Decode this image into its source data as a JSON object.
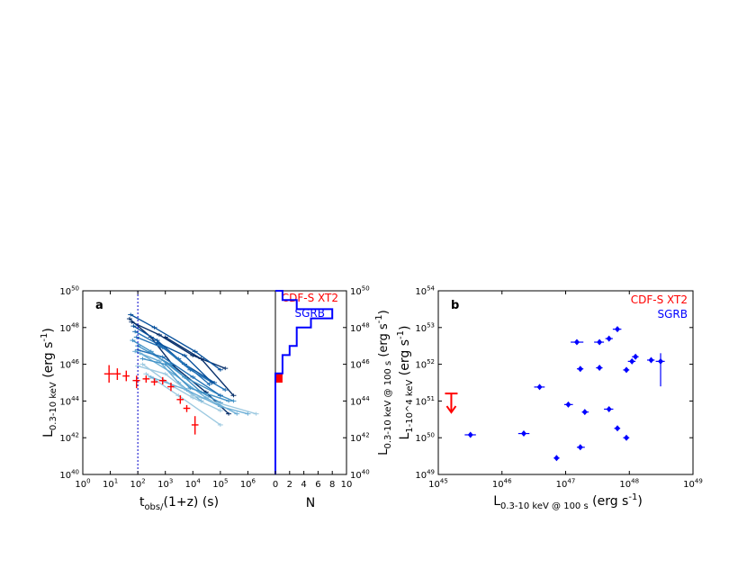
{
  "chart_data": [
    {
      "type": "line",
      "panel_label": "a",
      "xlabel": "t_obs/(1+z) (s)",
      "ylabel": "L_0.3-10 keV (erg s^-1)",
      "xscale": "log",
      "yscale": "log",
      "xlim": [
        1,
        10000000.0
      ],
      "ylim": [
        1e+40,
        1e+50
      ],
      "x_ticks": [
        "10^0",
        "10^1",
        "10^2",
        "10^3",
        "10^4",
        "10^5",
        "10^6"
      ],
      "y_ticks": [
        "10^40",
        "10^42",
        "10^44",
        "10^46",
        "10^48",
        "10^50"
      ],
      "vline_x": 100,
      "legend": [
        {
          "name": "CDF-S XT2",
          "color": "#ff0000"
        },
        {
          "name": "SGRB",
          "color": "#0000ff"
        }
      ],
      "sgrb_colors": [
        "#08306b",
        "#08519c",
        "#2171b5",
        "#4292c6",
        "#6baed6",
        "#9ecae1"
      ],
      "series": [
        {
          "name": "CDF-S XT2",
          "color": "#ff0000",
          "points": [
            {
              "x": 9,
              "y": 3e+45,
              "xerr": [
                6,
                14
              ],
              "yerr": [
                1e+45,
                9e+45
              ]
            },
            {
              "x": 18,
              "y": 3e+45,
              "xerr": [
                14,
                24
              ],
              "yerr": [
                1.4e+45,
                6e+45
              ]
            },
            {
              "x": 38,
              "y": 2.3e+45,
              "xerr": [
                28,
                50
              ],
              "yerr": [
                1.2e+45,
                4.5e+45
              ]
            },
            {
              "x": 90,
              "y": 1.3e+45,
              "xerr": [
                65,
                120
              ],
              "yerr": [
                5e+44,
                2.4e+45
              ]
            },
            {
              "x": 200,
              "y": 1.6e+45,
              "xerr": [
                150,
                270
              ],
              "yerr": [
                1e+45,
                2.4e+45
              ]
            },
            {
              "x": 400,
              "y": 1.1e+45,
              "xerr": [
                300,
                530
              ],
              "yerr": [
                7e+44,
                1.7e+45
              ]
            },
            {
              "x": 800,
              "y": 1.3e+45,
              "xerr": [
                600,
                1100
              ],
              "yerr": [
                8e+44,
                2e+45
              ]
            },
            {
              "x": 1600,
              "y": 6e+44,
              "xerr": [
                1200,
                2100
              ],
              "yerr": [
                3.5e+44,
                1e+45
              ]
            },
            {
              "x": 3500,
              "y": 1.2e+44,
              "xerr": [
                2600,
                4600
              ],
              "yerr": [
                7e+43,
                2e+44
              ]
            },
            {
              "x": 6000,
              "y": 4e+43,
              "xerr": [
                4500,
                8000
              ],
              "yerr": [
                2.5e+43,
                6e+43
              ]
            },
            {
              "x": 12000,
              "y": 5e+42,
              "xerr": [
                9000,
                16000
              ],
              "yerr": [
                1.5e+42,
                1.5e+43
              ]
            }
          ]
        }
      ],
      "sgrb_curves": [
        {
          "p": [
            [
              50,
              3e+48
            ],
            [
              300,
              3e+47
            ],
            [
              2000,
              8e+45
            ],
            [
              30000.0,
              3e+44
            ],
            [
              200000.0,
              2e+43
            ]
          ],
          "c": 0
        },
        {
          "p": [
            [
              60,
              2e+48
            ],
            [
              600,
              4e+47
            ],
            [
              10000.0,
              3e+46
            ],
            [
              150000.0,
              6e+45
            ]
          ],
          "c": 0
        },
        {
          "p": [
            [
              55,
              5e+48
            ],
            [
              400,
              1e+48
            ],
            [
              12000.0,
              5e+46
            ],
            [
              100000.0,
              5e+45
            ]
          ],
          "c": 1
        },
        {
          "p": [
            [
              70,
              1.2e+48
            ],
            [
              500,
              2e+47
            ],
            [
              5000,
              1e+46
            ],
            [
              60000.0,
              1e+45
            ]
          ],
          "c": 1
        },
        {
          "p": [
            [
              80,
              6e+47
            ],
            [
              700,
              1e+47
            ],
            [
              8000,
              5e+45
            ],
            [
              150000.0,
              4e+44
            ]
          ],
          "c": 2
        },
        {
          "p": [
            [
              90,
              3e+47
            ],
            [
              800,
              8e+46
            ],
            [
              3000,
              2e+46
            ],
            [
              40000.0,
              8e+44
            ]
          ],
          "c": 2
        },
        {
          "p": [
            [
              65,
              2e+47
            ],
            [
              300,
              5e+46
            ],
            [
              5000,
              2e+45
            ],
            [
              100000.0,
              2e+44
            ],
            [
              300000.0,
              1e+44
            ]
          ],
          "c": 3
        },
        {
          "p": [
            [
              100,
              1e+47
            ],
            [
              1500,
              1e+46
            ],
            [
              20000.0,
              3e+44
            ],
            [
              100000.0,
              8e+43
            ]
          ],
          "c": 3
        },
        {
          "p": [
            [
              120,
              4e+46
            ],
            [
              2000,
              3e+45
            ],
            [
              30000.0,
              1.5e+44
            ],
            [
              400000.0,
              2e+43
            ]
          ],
          "c": 4
        },
        {
          "p": [
            [
              80,
              5e+46
            ],
            [
              600,
              1.5e+46
            ],
            [
              3000,
              1e+45
            ],
            [
              20000.0,
              1e+44
            ]
          ],
          "c": 4
        },
        {
          "p": [
            [
              150,
              1e+46
            ],
            [
              2000,
              6e+44
            ],
            [
              10000.0,
              1.5e+44
            ],
            [
              100000.0,
              3e+43
            ]
          ],
          "c": 5
        },
        {
          "p": [
            [
              200,
              3e+45
            ],
            [
              3000,
              2e+44
            ],
            [
              100000.0,
              5e+42
            ]
          ],
          "c": 5
        },
        {
          "p": [
            [
              100,
              8e+45
            ],
            [
              1000,
              3e+45
            ],
            [
              10000.0,
              2e+44
            ],
            [
              2000000.0,
              2e+43
            ]
          ],
          "c": 5
        },
        {
          "p": [
            [
              300,
              2e+45
            ],
            [
              6000,
              4e+44
            ],
            [
              100000.0,
              5e+43
            ],
            [
              1000000.0,
              2e+43
            ]
          ],
          "c": 4
        },
        {
          "p": [
            [
              150,
              2e+46
            ],
            [
              1000,
              1e+46
            ],
            [
              8000,
              5e+44
            ],
            [
              200000.0,
              1e+44
            ]
          ],
          "c": 3
        },
        {
          "p": [
            [
              100,
              6e+46
            ],
            [
              800,
              2.5e+46
            ],
            [
              10000.0,
              2e+45
            ],
            [
              100000.0,
              2e+44
            ]
          ],
          "c": 2
        },
        {
          "p": [
            [
              500,
              1.5e+47
            ],
            [
              5000,
              3e+46
            ],
            [
              50000.0,
              1e+45
            ]
          ],
          "c": 1
        },
        {
          "p": [
            [
              1000,
              3e+47
            ],
            [
              20000.0,
              2e+46
            ],
            [
              300000.0,
              2e+44
            ]
          ],
          "c": 0
        }
      ],
      "histogram": {
        "xlabel": "N",
        "ylabel": "L_0.3-10 keV @ 100 s (erg s^-1)",
        "x_ticks": [
          "0",
          "2",
          "4",
          "6",
          "8",
          "10"
        ],
        "xlim": [
          0,
          10
        ],
        "bin_edges_log10": [
          40,
          41,
          42,
          43,
          44,
          45,
          45.5,
          46,
          46.5,
          47,
          47.5,
          48,
          48.5,
          49,
          49.5,
          50
        ],
        "sgrb_counts": [
          0,
          0,
          0,
          0,
          0,
          0,
          1,
          1,
          2,
          3,
          3,
          5,
          8,
          3,
          1
        ],
        "cdfs_bin_log10": [
          45,
          45.5
        ],
        "cdfs_count": 1
      }
    },
    {
      "type": "scatter",
      "panel_label": "b",
      "xlabel": "L_0.3-10 keV @ 100 s (erg s^-1)",
      "ylabel": "L_1-10^4 keV (erg s^-1)",
      "xscale": "log",
      "yscale": "log",
      "xlim": [
        1e+45,
        1e+49
      ],
      "ylim": [
        1e+49,
        1e+54
      ],
      "x_ticks": [
        "10^45",
        "10^46",
        "10^47",
        "10^48",
        "10^49"
      ],
      "y_ticks": [
        "10^49",
        "10^50",
        "10^51",
        "10^52",
        "10^53",
        "10^54"
      ],
      "legend": [
        {
          "name": "CDF-S XT2",
          "color": "#ff0000"
        },
        {
          "name": "SGRB",
          "color": "#0000ff"
        }
      ],
      "upper_limit": {
        "name": "CDF-S XT2",
        "x": 1.6e+45,
        "y": 1.6e+51
      },
      "series": [
        {
          "name": "SGRB",
          "color": "#0000ff",
          "points": [
            {
              "x": 3.2e+45,
              "y": 1.2e+50,
              "xe": [
                2.6e+45,
                3.9e+45
              ]
            },
            {
              "x": 2.2e+46,
              "y": 1.3e+50,
              "xe": [
                1.8e+46,
                2.7e+46
              ]
            },
            {
              "x": 3.9e+46,
              "y": 2.4e+51,
              "xe": [
                3.2e+46,
                4.7e+46
              ]
            },
            {
              "x": 7.2e+46,
              "y": 2.8e+49,
              "xe": [
                6.5e+46,
                8e+46
              ]
            },
            {
              "x": 1.1e+47,
              "y": 8e+50,
              "xe": [
                9.5e+46,
                1.3e+47
              ]
            },
            {
              "x": 1.5e+47,
              "y": 4e+52,
              "xe": [
                1.2e+47,
                1.9e+47
              ]
            },
            {
              "x": 1.7e+47,
              "y": 7.5e+51,
              "xe": [
                1.5e+47,
                1.9e+47
              ]
            },
            {
              "x": 1.7e+47,
              "y": 5.5e+49,
              "xe": [
                1.5e+47,
                2e+47
              ]
            },
            {
              "x": 2e+47,
              "y": 5e+50,
              "xe": [
                1.8e+47,
                2.3e+47
              ]
            },
            {
              "x": 3.4e+47,
              "y": 4e+52,
              "xe": [
                2.8e+47,
                4e+47
              ]
            },
            {
              "x": 3.4e+47,
              "y": 8e+51,
              "xe": [
                3e+47,
                3.8e+47
              ]
            },
            {
              "x": 4.8e+47,
              "y": 5e+52,
              "xe": [
                4.2e+47,
                5.5e+47
              ]
            },
            {
              "x": 4.8e+47,
              "y": 6e+50,
              "xe": [
                4e+47,
                5.6e+47
              ]
            },
            {
              "x": 6.5e+47,
              "y": 9e+52,
              "xe": [
                5.5e+47,
                7.5e+47
              ]
            },
            {
              "x": 6.5e+47,
              "y": 1.8e+50,
              "xe": [
                5.8e+47,
                7.2e+47
              ]
            },
            {
              "x": 9e+47,
              "y": 7e+51,
              "xe": [
                8e+47,
                1e+48
              ]
            },
            {
              "x": 9e+47,
              "y": 1e+50,
              "xe": [
                8e+47,
                1e+48
              ]
            },
            {
              "x": 1.1e+48,
              "y": 1.2e+52,
              "xe": [
                9.5e+47,
                1.25e+48
              ]
            },
            {
              "x": 1.25e+48,
              "y": 1.6e+52,
              "xe": [
                1.1e+48,
                1.4e+48
              ]
            },
            {
              "x": 2.2e+48,
              "y": 1.3e+52,
              "xe": [
                1.9e+48,
                2.5e+48
              ]
            },
            {
              "x": 3.1e+48,
              "y": 1.2e+52,
              "xe": [
                2.6e+48,
                3.6e+48
              ],
              "ye": [
                2.5e+51,
                2e+52
              ]
            }
          ]
        }
      ]
    }
  ]
}
